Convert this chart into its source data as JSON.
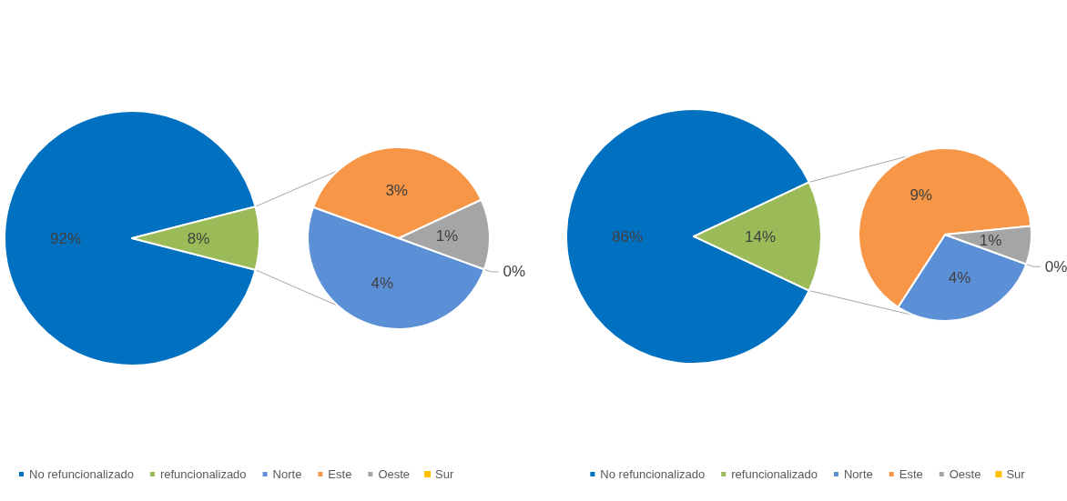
{
  "chart_data": [
    {
      "type": "pie",
      "legend": "bottom left",
      "categories": [
        "No refuncionalizado",
        "refuncionalizado",
        "Norte",
        "Este",
        "Oeste",
        "Sur"
      ],
      "colors": [
        "#0070c0",
        "#9bbb59",
        "#5b8fd6",
        "#f79646",
        "#a5a5a5",
        "#ffc000"
      ],
      "series": [
        {
          "values": [
            92,
            8,
            null,
            null,
            null,
            null
          ],
          "value_labels": [
            "92%",
            "8%",
            null,
            null,
            null,
            null
          ]
        },
        {
          "values": [
            null,
            null,
            4,
            3,
            1,
            0
          ],
          "value_labels": [
            null,
            null,
            "4%",
            "3%",
            "1%",
            "0%"
          ]
        }
      ]
    },
    {
      "type": "pie",
      "legend": "bottom",
      "categories": [
        "No refuncionalizado",
        "refuncionalizado",
        "Norte",
        "Este",
        "Oeste",
        "Sur"
      ],
      "colors": [
        "#0070c0",
        "#9bbb59",
        "#5b8fd6",
        "#f79646",
        "#a5a5a5",
        "#ffc000"
      ],
      "series": [
        {
          "values": [
            86,
            14,
            null,
            null,
            null,
            null
          ],
          "value_labels": [
            "86%",
            "14%",
            null,
            null,
            null,
            null
          ]
        },
        {
          "values": [
            null,
            null,
            4,
            9,
            1,
            0
          ],
          "value_labels": [
            null,
            null,
            "4%",
            "9%",
            "1%",
            "0%"
          ]
        }
      ]
    }
  ]
}
